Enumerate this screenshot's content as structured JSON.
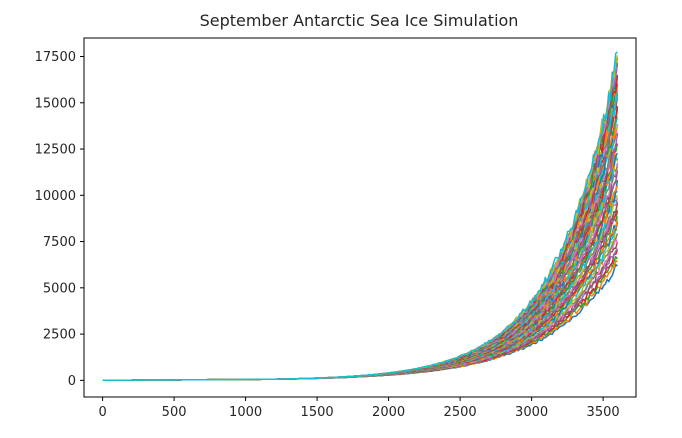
{
  "chart_data": {
    "type": "line",
    "title": "September Antarctic Sea Ice Simulation",
    "xlabel": "",
    "ylabel": "",
    "xlim": [
      -130,
      3730
    ],
    "ylim": [
      -900,
      18500
    ],
    "xticks": [
      0,
      500,
      1000,
      1500,
      2000,
      2500,
      3000,
      3500
    ],
    "yticks": [
      0,
      2500,
      5000,
      7500,
      10000,
      12500,
      15000,
      17500
    ],
    "xtick_labels": [
      "0",
      "500",
      "1000",
      "1500",
      "2000",
      "2500",
      "3000",
      "3500"
    ],
    "ytick_labels": [
      "0",
      "2500",
      "5000",
      "7500",
      "10000",
      "12500",
      "15000",
      "17500"
    ],
    "grid": false,
    "legend": "none",
    "series_model": "exponential growth trajectories",
    "n_series": 60,
    "x": [
      0,
      300,
      600,
      900,
      1200,
      1500,
      1800,
      2000,
      2200,
      2400,
      2600,
      2800,
      3000,
      3100,
      3200,
      3300,
      3400,
      3500,
      3600
    ],
    "series": [
      {
        "values": [
          0,
          20,
          50,
          70,
          90,
          150,
          270,
          410,
          620,
          940,
          1420,
          2150,
          3260,
          4010,
          4940,
          6080,
          7480,
          9210,
          11340
        ]
      },
      {
        "values": [
          0,
          25,
          55,
          75,
          100,
          200,
          400,
          660,
          1060,
          1700,
          2720,
          4360,
          6990,
          8850,
          11200,
          12600,
          14000,
          15500,
          17700
        ]
      },
      {
        "values": [
          0,
          15,
          40,
          55,
          75,
          110,
          180,
          260,
          380,
          550,
          800,
          1170,
          1710,
          2070,
          2500,
          3030,
          3670,
          4440,
          6300
        ]
      }
    ],
    "series_colors": [
      "#1f77b4",
      "#ff7f0e",
      "#2ca02c",
      "#d62728",
      "#9467bd",
      "#8c564b",
      "#e377c2",
      "#7f7f7f",
      "#bcbd22",
      "#17becf"
    ]
  }
}
